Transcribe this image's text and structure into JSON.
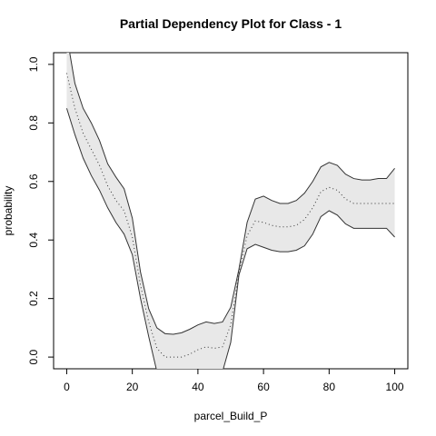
{
  "chart_data": {
    "type": "band-line",
    "title": "Partial Dependency Plot for Class - 1",
    "xlabel": "parcel_Build_P",
    "ylabel": "probability",
    "x": [
      0,
      2.5,
      5,
      7.5,
      10,
      12.5,
      15,
      17.5,
      20,
      22.5,
      25,
      27.5,
      30,
      32.5,
      35,
      37.5,
      40,
      42.5,
      45,
      47.5,
      50,
      52.5,
      55,
      57.5,
      60,
      62.5,
      65,
      67.5,
      70,
      72.5,
      75,
      77.5,
      80,
      82.5,
      85,
      87.5,
      90,
      92.5,
      95,
      97.5,
      100
    ],
    "values": [
      0.97,
      0.85,
      0.765,
      0.71,
      0.655,
      0.585,
      0.535,
      0.5,
      0.41,
      0.245,
      0.12,
      0.03,
      0.0,
      0.0,
      0.0,
      0.01,
      0.025,
      0.035,
      0.03,
      0.035,
      0.11,
      0.29,
      0.415,
      0.465,
      0.46,
      0.45,
      0.445,
      0.445,
      0.45,
      0.47,
      0.51,
      0.565,
      0.58,
      0.57,
      0.54,
      0.525,
      0.525,
      0.525,
      0.525,
      0.525,
      0.525
    ],
    "upper": [
      1.1,
      0.935,
      0.85,
      0.8,
      0.74,
      0.66,
      0.615,
      0.575,
      0.475,
      0.29,
      0.165,
      0.1,
      0.08,
      0.078,
      0.083,
      0.095,
      0.11,
      0.12,
      0.115,
      0.12,
      0.17,
      0.3,
      0.46,
      0.54,
      0.55,
      0.535,
      0.525,
      0.525,
      0.535,
      0.56,
      0.6,
      0.65,
      0.665,
      0.655,
      0.625,
      0.61,
      0.605,
      0.605,
      0.61,
      0.61,
      0.645
    ],
    "lower": [
      0.85,
      0.76,
      0.68,
      0.62,
      0.57,
      0.51,
      0.46,
      0.42,
      0.35,
      0.2,
      0.07,
      -0.05,
      -0.1,
      -0.12,
      -0.12,
      -0.12,
      -0.1,
      -0.1,
      -0.1,
      -0.05,
      0.05,
      0.28,
      0.37,
      0.385,
      0.375,
      0.365,
      0.36,
      0.36,
      0.365,
      0.38,
      0.42,
      0.48,
      0.5,
      0.485,
      0.455,
      0.44,
      0.44,
      0.44,
      0.44,
      0.44,
      0.41
    ],
    "color": "#333333",
    "band_color": "#e8e8e8",
    "xlim": [
      -4,
      104
    ],
    "ylim": [
      -0.04,
      1.04
    ],
    "xticks": [
      0,
      20,
      40,
      60,
      80,
      100
    ],
    "yticks": [
      {
        "value": 0,
        "label": "0.0"
      },
      0.2,
      0.4,
      0.6,
      0.8,
      {
        "value": 1,
        "label": "1.0"
      }
    ]
  }
}
